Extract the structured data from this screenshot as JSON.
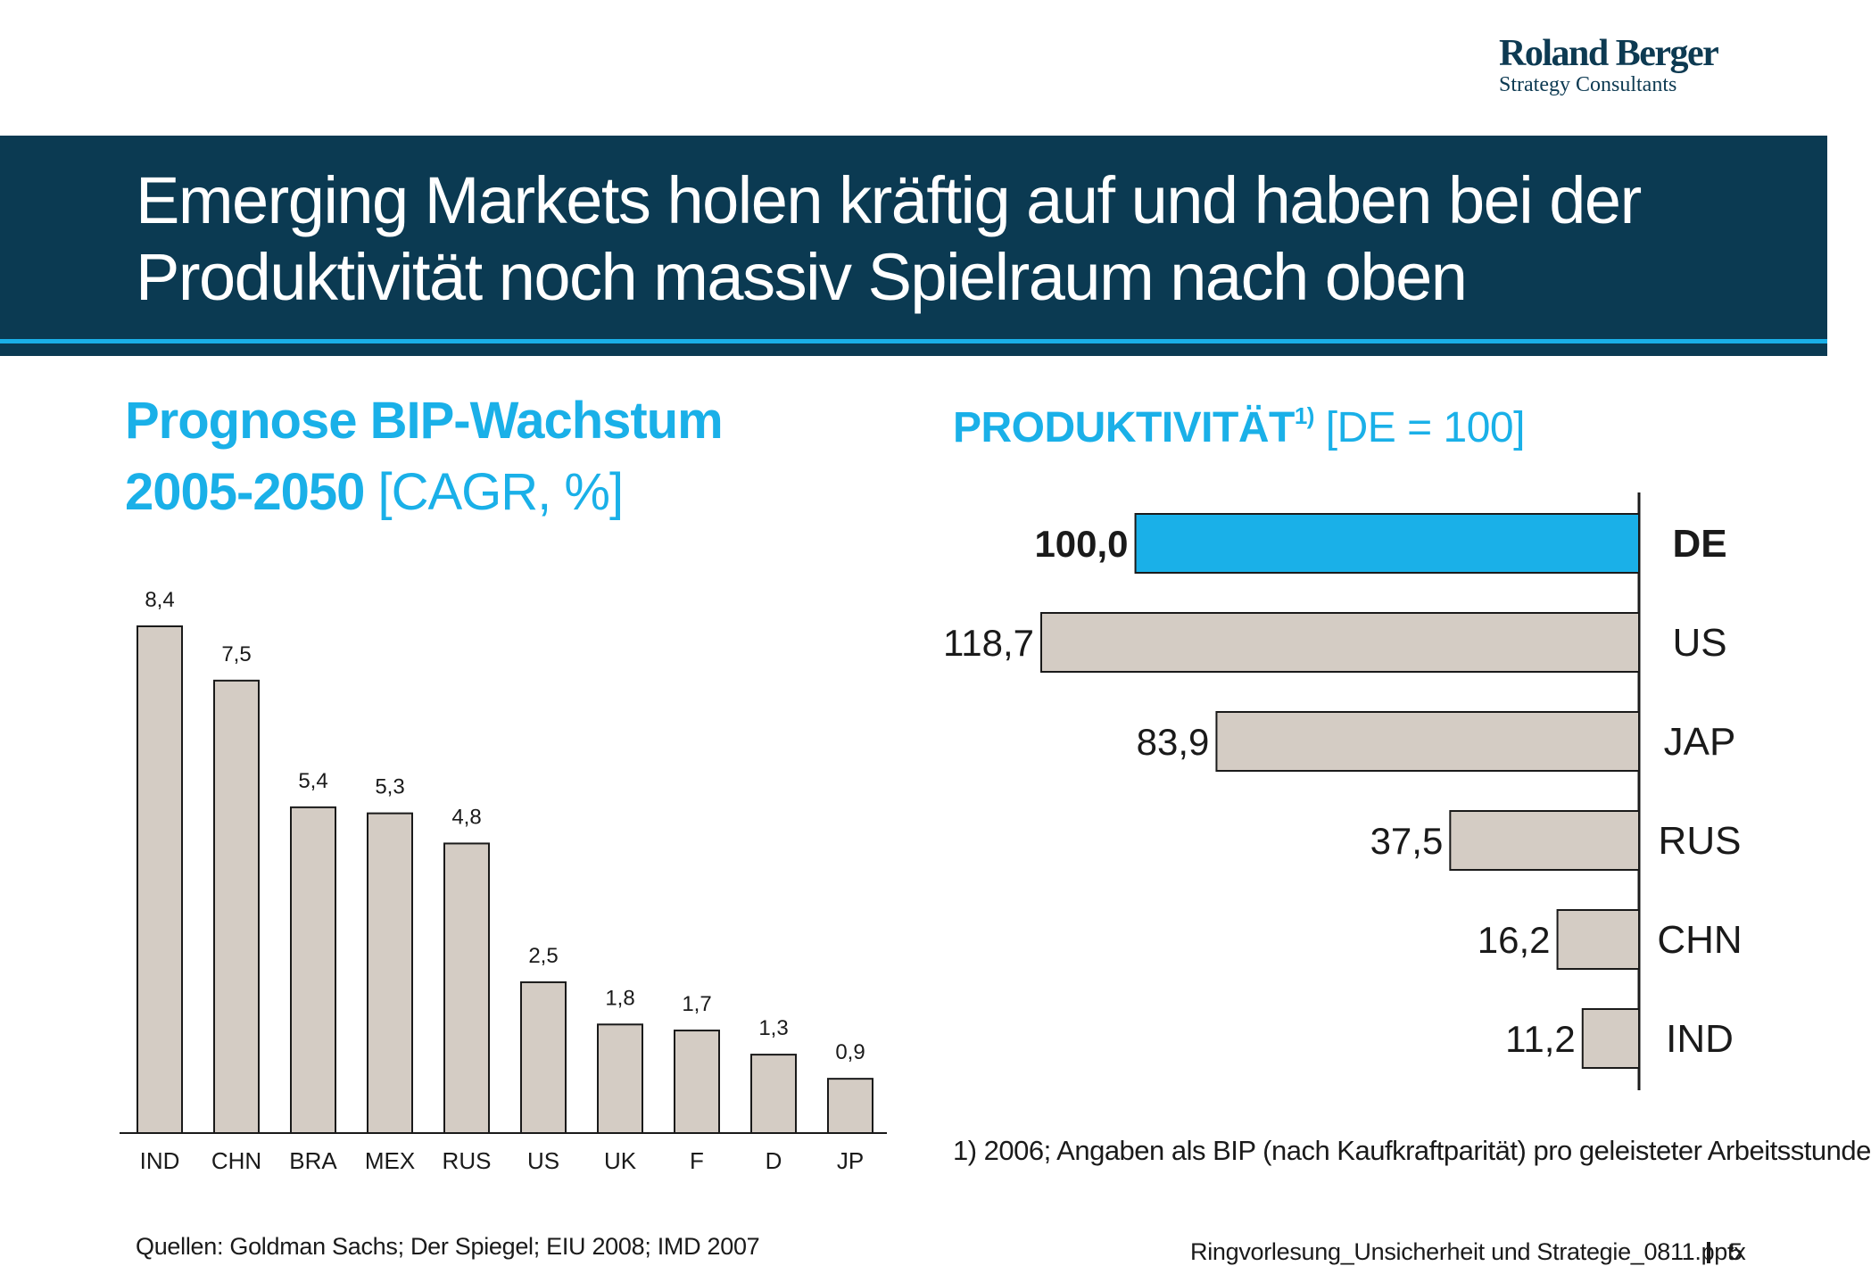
{
  "logo": {
    "name": "Roland Berger",
    "subtitle": "Strategy Consultants"
  },
  "slide": {
    "title_line1": "Emerging Markets holen kräftig auf und haben bei der",
    "title_line2": "Produktivität noch massiv Spielraum nach oben",
    "left_heading_bold1": "Prognose BIP-Wachstum",
    "left_heading_bold2": "2005-2050",
    "left_heading_unit": "[CAGR, %]",
    "right_heading_bold": "PRODUKTIVITÄT",
    "right_heading_sup": "1)",
    "right_heading_unit": "[DE = 100]",
    "footnote": "1) 2006; Angaben als BIP (nach Kaufkraftparität) pro geleisteter Arbeitsstunde",
    "sources": "Quellen: Goldman Sachs; Der Spiegel; EIU 2008; IMD 2007",
    "filename": "Ringvorlesung_Unsicherheit und Strategie_0811.pptx",
    "page": "5"
  },
  "colors": {
    "banner": "#0b3a52",
    "accent": "#1ab0e8",
    "bar": "#d4ccc4",
    "highlight": "#1ab0e8",
    "bar_stroke": "#1a1a1a"
  },
  "chart_data": [
    {
      "type": "bar",
      "title": "Prognose BIP-Wachstum 2005-2050 [CAGR, %]",
      "categories": [
        "IND",
        "CHN",
        "BRA",
        "MEX",
        "RUS",
        "US",
        "UK",
        "F",
        "D",
        "JP"
      ],
      "values": [
        8.4,
        7.5,
        5.4,
        5.3,
        4.8,
        2.5,
        1.8,
        1.7,
        1.3,
        0.9
      ],
      "labels": [
        "8,4",
        "7,5",
        "5,4",
        "5,3",
        "4,8",
        "2,5",
        "1,8",
        "1,7",
        "1,3",
        "0,9"
      ],
      "ylim": [
        0,
        8.4
      ],
      "grid": false,
      "legend": "none"
    },
    {
      "type": "bar",
      "orientation": "horizontal",
      "title": "PRODUKTIVITÄT 1) [DE = 100]",
      "categories": [
        "DE",
        "US",
        "JAP",
        "RUS",
        "CHN",
        "IND"
      ],
      "values": [
        100.0,
        118.7,
        83.9,
        37.5,
        16.2,
        11.2
      ],
      "labels": [
        "100,0",
        "118,7",
        "83,9",
        "37,5",
        "16,2",
        "11,2"
      ],
      "highlight": "DE",
      "xlim": [
        0,
        118.7
      ],
      "grid": false,
      "legend": "none"
    }
  ]
}
